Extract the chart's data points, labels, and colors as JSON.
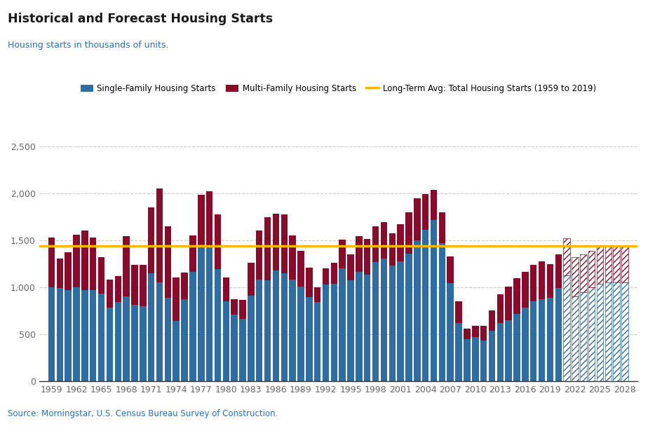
{
  "title": "Historical and Forecast Housing Starts",
  "subtitle": "Housing starts in thousands of units.",
  "source": "Source: Morningstar, U.S. Census Bureau Survey of Construction.",
  "long_term_avg": 1440,
  "title_color": "#1a1a1a",
  "subtitle_color": "#1874CD",
  "source_color": "#1874CD",
  "sf_color": "#2E6DA4",
  "mf_color": "#8B0A2A",
  "avg_line_color": "#FFB800",
  "years": [
    1959,
    1960,
    1961,
    1962,
    1963,
    1964,
    1965,
    1966,
    1967,
    1968,
    1969,
    1970,
    1971,
    1972,
    1973,
    1974,
    1975,
    1976,
    1977,
    1978,
    1979,
    1980,
    1981,
    1982,
    1983,
    1984,
    1985,
    1986,
    1987,
    1988,
    1989,
    1990,
    1991,
    1992,
    1993,
    1994,
    1995,
    1996,
    1997,
    1998,
    1999,
    2000,
    2001,
    2002,
    2003,
    2004,
    2005,
    2006,
    2007,
    2008,
    2009,
    2010,
    2011,
    2012,
    2013,
    2014,
    2015,
    2016,
    2017,
    2018,
    2019,
    2020,
    2021,
    2022,
    2023,
    2024,
    2025,
    2026,
    2027,
    2028
  ],
  "single_family": [
    1000,
    995,
    970,
    1000,
    970,
    970,
    930,
    780,
    840,
    900,
    810,
    795,
    1150,
    1050,
    890,
    640,
    875,
    1160,
    1450,
    1433,
    1194,
    852,
    705,
    663,
    910,
    1084,
    1072,
    1179,
    1146,
    1081,
    1003,
    895,
    840,
    1030,
    1039,
    1198,
    1076,
    1161,
    1133,
    1271,
    1302,
    1231,
    1273,
    1359,
    1499,
    1610,
    1716,
    1465,
    1046,
    622,
    445,
    471,
    430,
    535,
    618,
    648,
    714,
    781,
    849,
    876,
    888,
    991,
    1123,
    900,
    947,
    1000,
    1040,
    1050,
    1050,
    1050
  ],
  "multi_family": [
    530,
    310,
    400,
    560,
    630,
    560,
    390,
    300,
    280,
    640,
    430,
    445,
    700,
    1000,
    760,
    460,
    280,
    390,
    530,
    590,
    580,
    250,
    170,
    200,
    350,
    520,
    670,
    600,
    630,
    470,
    380,
    310,
    160,
    170,
    220,
    310,
    270,
    380,
    380,
    380,
    390,
    340,
    400,
    440,
    450,
    380,
    320,
    330,
    280,
    230,
    115,
    120,
    160,
    220,
    310,
    360,
    380,
    380,
    390,
    400,
    360,
    360,
    400,
    420,
    400,
    390,
    390,
    390,
    390,
    390
  ],
  "forecast_start_year": 2021,
  "ylim": [
    0,
    2700
  ],
  "yticks": [
    0,
    500,
    1000,
    1500,
    2000,
    2500
  ],
  "xtick_years": [
    1959,
    1962,
    1965,
    1968,
    1971,
    1974,
    1977,
    1980,
    1983,
    1986,
    1989,
    1992,
    1995,
    1998,
    2001,
    2004,
    2007,
    2010,
    2013,
    2016,
    2019,
    2022,
    2025,
    2028
  ]
}
